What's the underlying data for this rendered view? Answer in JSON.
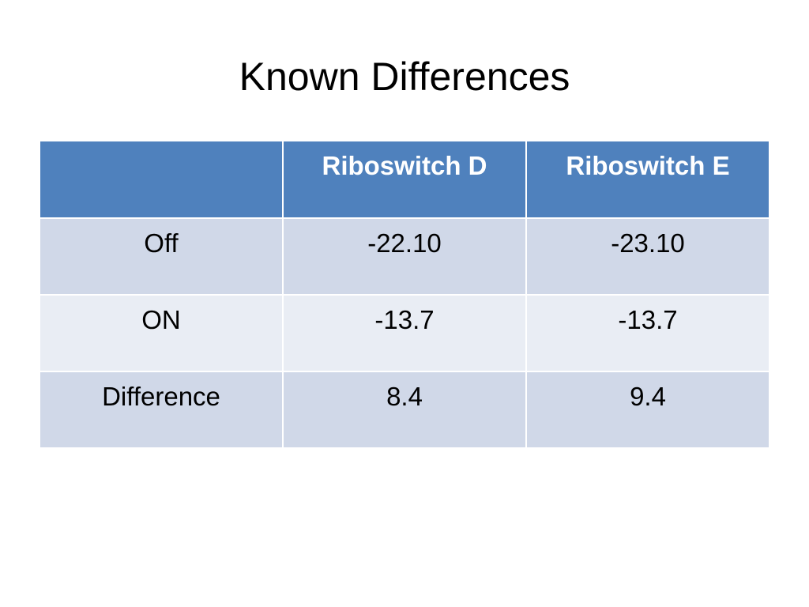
{
  "slide": {
    "title": "Known Differences"
  },
  "table": {
    "headers": [
      "",
      "Riboswitch D",
      "Riboswitch E"
    ],
    "rows": [
      [
        "Off",
        "-22.10",
        "-23.10"
      ],
      [
        "ON",
        "-13.7",
        "-13.7"
      ],
      [
        "Difference",
        "8.4",
        "9.4"
      ]
    ]
  },
  "colors": {
    "header_fill": "#4f81bd",
    "row_band_1": "#d0d8e8",
    "row_band_2": "#e9edf4",
    "header_text": "#ffffff"
  }
}
